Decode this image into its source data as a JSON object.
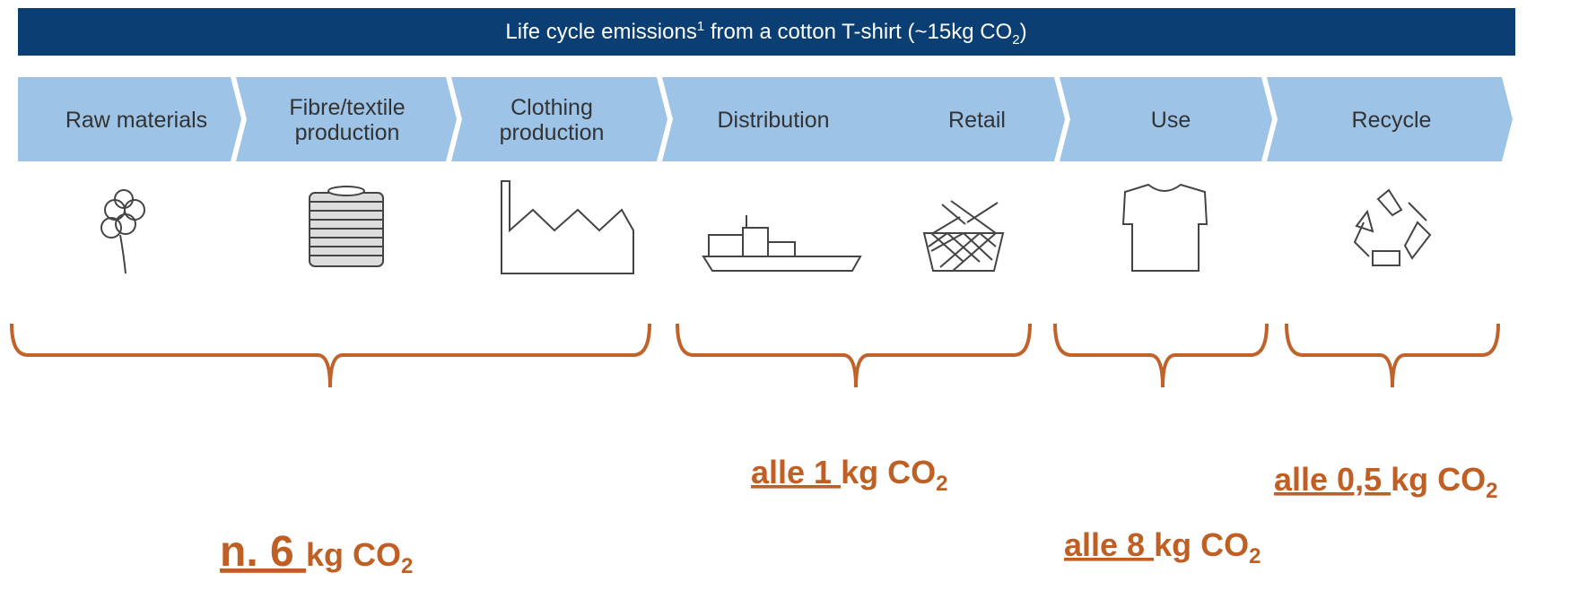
{
  "header": {
    "title": "Life cycle emissions",
    "title_sup": "1",
    "title_rest": " from a cotton T-shirt (~15kg CO",
    "title_sub": "2",
    "title_end": ")"
  },
  "stages": [
    {
      "lines": [
        "Raw materials"
      ]
    },
    {
      "lines": [
        "Fibre/textile",
        "production"
      ]
    },
    {
      "lines": [
        "Clothing",
        "production"
      ]
    },
    {
      "lines": [
        "Distribution"
      ]
    },
    {
      "lines": [
        "Retail"
      ]
    },
    {
      "lines": [
        "Use"
      ]
    },
    {
      "lines": [
        "Recycle"
      ]
    }
  ],
  "emissions": [
    {
      "amount": "n. 6 ",
      "unit": "kg CO",
      "sub": "2"
    },
    {
      "amount": "alle 1 ",
      "unit": "kg CO",
      "sub": "2"
    },
    {
      "amount": "alle 8 ",
      "unit": "kg CO",
      "sub": "2"
    },
    {
      "amount": "alle 0,5 ",
      "unit": "kg CO",
      "sub": "2"
    }
  ]
}
